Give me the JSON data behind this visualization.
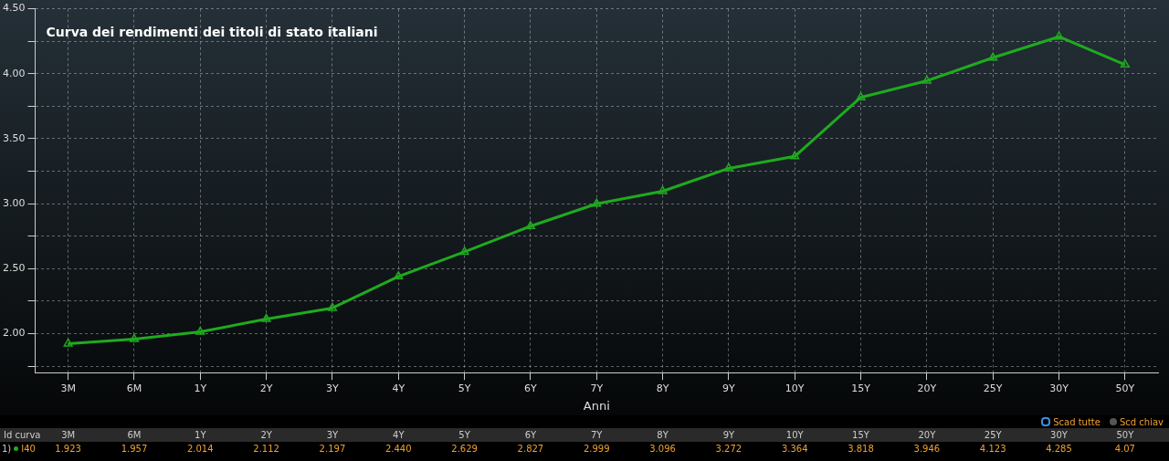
{
  "chart_data": {
    "type": "line",
    "title": "Curva dei rendimenti dei titoli di stato italiani",
    "xlabel": "Anni",
    "categories": [
      "3M",
      "6M",
      "1Y",
      "2Y",
      "3Y",
      "4Y",
      "5Y",
      "6Y",
      "7Y",
      "8Y",
      "9Y",
      "10Y",
      "15Y",
      "20Y",
      "25Y",
      "30Y",
      "50Y"
    ],
    "series": [
      {
        "name": "I40",
        "color": "#1faa1f",
        "values": [
          1.923,
          1.957,
          2.014,
          2.112,
          2.197,
          2.44,
          2.629,
          2.827,
          2.999,
          3.096,
          3.272,
          3.364,
          3.818,
          3.946,
          4.123,
          4.285,
          4.07
        ],
        "value_labels": [
          "1.923",
          "1.957",
          "2.014",
          "2.112",
          "2.197",
          "2.440",
          "2.629",
          "2.827",
          "2.999",
          "3.096",
          "3.272",
          "3.364",
          "3.818",
          "3.946",
          "4.123",
          "4.285",
          "4.07"
        ]
      }
    ],
    "ylim": [
      1.7,
      4.5
    ],
    "yticks": [
      {
        "value": 1.75,
        "label": null
      },
      {
        "value": 2,
        "label": "2.00"
      },
      {
        "value": 2.25,
        "label": null
      },
      {
        "value": 2.5,
        "label": "2.50"
      },
      {
        "value": 2.75,
        "label": null
      },
      {
        "value": 3,
        "label": "3.00"
      },
      {
        "value": 3.25,
        "label": null
      },
      {
        "value": 3.5,
        "label": "3.50"
      },
      {
        "value": 3.75,
        "label": null
      },
      {
        "value": 4,
        "label": "4.00"
      },
      {
        "value": 4.25,
        "label": null
      },
      {
        "value": 4.5,
        "label": "4.50"
      }
    ],
    "grid": true,
    "marker": "triangle",
    "line_style": "solid",
    "legend": "bottom left",
    "annotations": [
      "Id curva",
      "1)",
      "Scad tutte",
      "Scd chiav"
    ]
  }
}
